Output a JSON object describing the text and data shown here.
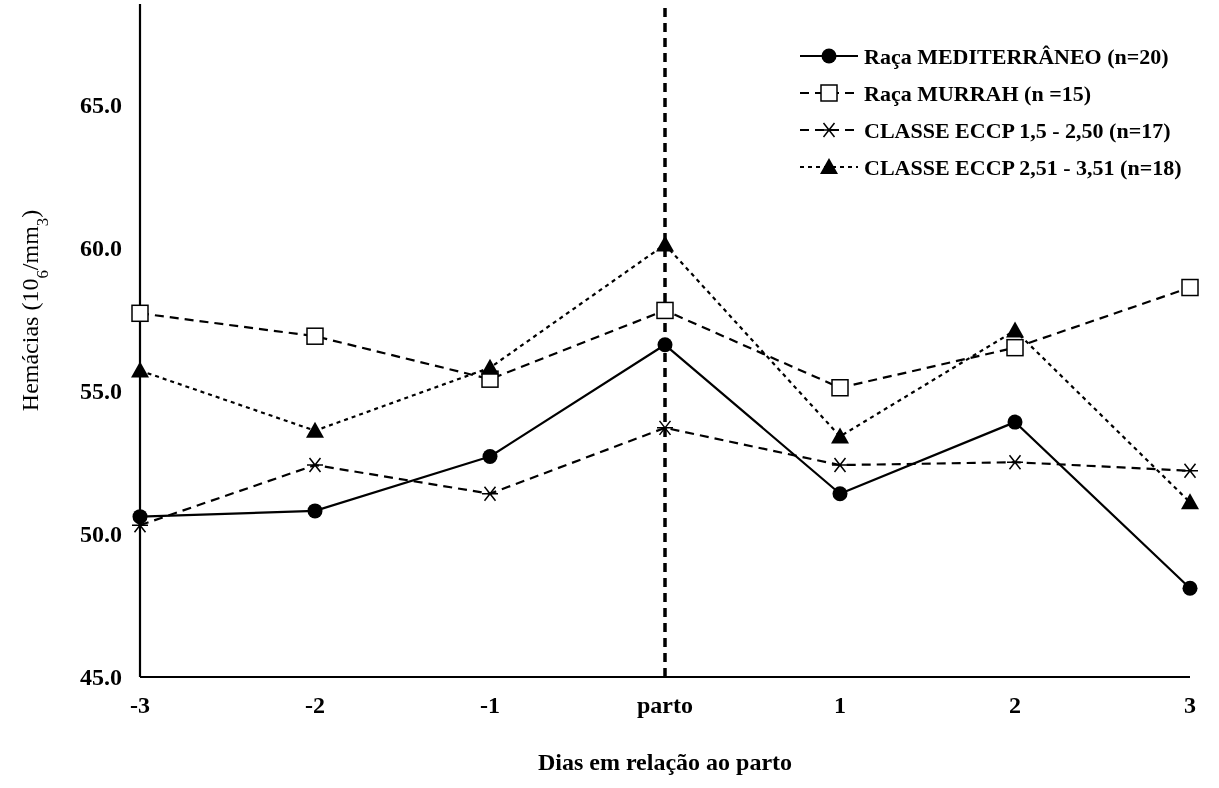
{
  "chart_data": {
    "type": "line",
    "xlabel": "Dias em relação ao parto",
    "ylabel": "Hemácias   (10$_{6}$/mm$_{3}$)",
    "categories": [
      "-3",
      "-2",
      "-1",
      "parto",
      "1",
      "2",
      "3"
    ],
    "ylim": [
      45,
      68.5
    ],
    "yticks": [
      {
        "value": 45,
        "label": "45.0"
      },
      {
        "value": 50,
        "label": "50.0"
      },
      {
        "value": 55,
        "label": "55.0"
      },
      {
        "value": 60,
        "label": "60.0"
      },
      {
        "value": 65,
        "label": "65.0"
      }
    ],
    "grid": false,
    "legend": "top right",
    "ref_lines": [
      {
        "axis": "x",
        "value": "parto",
        "line_style": "dashed",
        "color": "#000000"
      }
    ],
    "series": [
      {
        "name": "Raça MEDITERRÂNEO  (n=20)",
        "color": "#000000",
        "marker": "circle",
        "line_style": "solid",
        "values": [
          50.6,
          50.8,
          52.7,
          56.6,
          51.4,
          53.9,
          48.1
        ]
      },
      {
        "name": "Raça MURRAH  (n =15)",
        "color": "#000000",
        "marker": "square",
        "line_style": "dashed",
        "values": [
          57.7,
          56.9,
          55.4,
          57.8,
          55.1,
          56.5,
          58.6
        ]
      },
      {
        "name": "CLASSE ECCP 1,5 - 2,50 (n=17)",
        "color": "#000000",
        "marker": "cross",
        "line_style": "dashed",
        "values": [
          50.3,
          52.4,
          51.4,
          53.7,
          52.4,
          52.5,
          52.2
        ]
      },
      {
        "name": "CLASSE ECCP 2,51 - 3,51 (n=18)",
        "color": "#000000",
        "marker": "triangle",
        "line_style": "dotted",
        "values": [
          55.7,
          53.6,
          55.8,
          60.1,
          53.4,
          57.1,
          51.1
        ]
      }
    ]
  }
}
